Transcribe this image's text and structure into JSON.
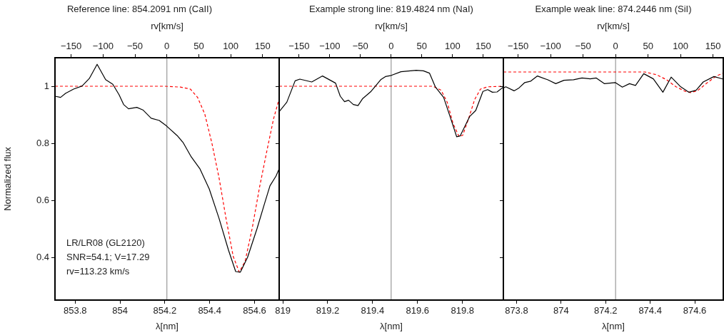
{
  "chart_data": [
    {
      "type": "line",
      "title": "Reference line: 854.2091 nm (CaII)",
      "xlabel": "λ[nm]",
      "x2label": "rv[km/s]",
      "ylabel": "Normalized flux",
      "xlim": [
        853.71,
        854.71
      ],
      "xticks": [
        853.8,
        854,
        854.2,
        854.4,
        854.6
      ],
      "x2lim": [
        -175.2,
        175.8
      ],
      "x2ticks": [
        {
          "value": -150,
          "label": "−150"
        },
        {
          "value": -100,
          "label": "−100"
        },
        {
          "value": -50,
          "label": "−50"
        },
        0,
        50,
        100,
        150
      ],
      "ylim": [
        0.25,
        1.1
      ],
      "yticks": [
        0.4,
        0.6,
        0.8,
        1
      ],
      "grid": false,
      "legend": false,
      "marker": "none",
      "ref_lines": [
        {
          "axis": "x",
          "value": 854.2091,
          "color": "#999999"
        }
      ],
      "annotations": [
        "LR/LR08 (GL2120)",
        "SNR=54.1; V=17.29",
        "rv=113.23 km/s"
      ],
      "series": [
        {
          "color": "#000000",
          "line_style": "solid",
          "x": [
            853.71,
            853.735,
            853.757,
            853.793,
            853.831,
            853.863,
            853.898,
            853.936,
            853.968,
            853.996,
            854.016,
            854.038,
            854.075,
            854.102,
            854.139,
            854.175,
            854.207,
            854.255,
            854.282,
            854.318,
            854.356,
            854.398,
            854.442,
            854.484,
            854.516,
            854.537,
            854.569,
            854.611,
            854.643,
            854.669,
            854.696,
            854.709
          ],
          "values": [
            0.965,
            0.961,
            0.975,
            0.99,
            1.001,
            1.027,
            1.077,
            1.023,
            1.007,
            0.97,
            0.936,
            0.921,
            0.926,
            0.917,
            0.888,
            0.88,
            0.861,
            0.827,
            0.802,
            0.752,
            0.711,
            0.64,
            0.536,
            0.425,
            0.35,
            0.348,
            0.4,
            0.5,
            0.584,
            0.651,
            0.685,
            0.709
          ]
        },
        {
          "color": "#ff0000",
          "line_style": "dashed",
          "x": [
            853.71,
            854.2,
            854.27,
            854.314,
            854.346,
            854.378,
            854.41,
            854.442,
            854.473,
            854.505,
            854.532,
            854.558,
            854.59,
            854.622,
            854.654,
            854.685,
            854.709
          ],
          "values": [
            1,
            1,
            0.997,
            0.99,
            0.961,
            0.903,
            0.8,
            0.678,
            0.536,
            0.403,
            0.348,
            0.386,
            0.503,
            0.644,
            0.769,
            0.886,
            0.953
          ]
        }
      ]
    },
    {
      "type": "line",
      "title": "Example strong line: 819.4824 nm (NaI)",
      "xlabel": "λ[nm]",
      "x2label": "rv[km/s]",
      "tick_labels": "x",
      "xlim": [
        818.984,
        819.982
      ],
      "xticks": [
        819,
        819.2,
        819.4,
        819.6,
        819.8
      ],
      "x2lim": [
        -182.3,
        182.8
      ],
      "x2ticks": [
        {
          "value": -150,
          "label": "−150"
        },
        {
          "value": -100,
          "label": "−100"
        },
        {
          "value": -50,
          "label": "−50"
        },
        0,
        50,
        100,
        150
      ],
      "ylim": [
        0.25,
        1.1
      ],
      "yticks": [
        0.4,
        0.6,
        0.8,
        1
      ],
      "grid": false,
      "legend": false,
      "marker": "none",
      "ref_lines": [
        {
          "axis": "x",
          "value": 819.4824,
          "color": "#999999"
        }
      ],
      "series": [
        {
          "color": "#000000",
          "line_style": "solid",
          "x": [
            818.984,
            819.018,
            819.055,
            819.076,
            819.129,
            819.177,
            819.235,
            819.256,
            819.275,
            819.293,
            819.314,
            819.335,
            819.356,
            819.393,
            819.415,
            819.436,
            819.457,
            819.483,
            819.526,
            819.594,
            819.626,
            819.653,
            819.679,
            819.716,
            819.748,
            819.774,
            819.79,
            819.832,
            819.859,
            819.891,
            819.912,
            819.933,
            819.954,
            819.98
          ],
          "values": [
            0.911,
            0.944,
            1.019,
            1.025,
            1.015,
            1.036,
            1.011,
            0.965,
            0.946,
            0.951,
            0.936,
            0.932,
            0.957,
            0.982,
            1.003,
            1.023,
            1.034,
            1.038,
            1.051,
            1.056,
            1.054,
            1.046,
            0.998,
            0.961,
            0.886,
            0.823,
            0.826,
            0.894,
            0.915,
            0.982,
            0.988,
            0.979,
            0.98,
            0.996
          ]
        },
        {
          "color": "#ff0000",
          "line_style": "dashed",
          "x": [
            818.984,
            819.668,
            819.705,
            819.732,
            819.758,
            819.785,
            819.801,
            819.827,
            819.854,
            819.88,
            819.912,
            819.98
          ],
          "values": [
            1,
            1,
            0.986,
            0.944,
            0.869,
            0.823,
            0.828,
            0.886,
            0.953,
            0.99,
            0.998,
            1
          ]
        }
      ]
    },
    {
      "type": "line",
      "title": "Example weak line: 874.2446 nm (SiI)",
      "xlabel": "λ[nm]",
      "x2label": "rv[km/s]",
      "tick_labels": "x",
      "xlim": [
        873.741,
        874.728
      ],
      "xticks": [
        873.8,
        874,
        874.2,
        874.4,
        874.6
      ],
      "x2lim": [
        -172.7,
        165.8
      ],
      "x2ticks": [
        {
          "value": -150,
          "label": "−150"
        },
        {
          "value": -100,
          "label": "−100"
        },
        {
          "value": -50,
          "label": "−50"
        },
        0,
        50,
        100,
        150
      ],
      "ylim": [
        0.25,
        1.1
      ],
      "yticks": [
        0.4,
        0.6,
        0.8,
        1
      ],
      "grid": false,
      "legend": false,
      "marker": "none",
      "ref_lines": [
        {
          "axis": "x",
          "value": 874.2446,
          "color": "#999999"
        }
      ],
      "series": [
        {
          "color": "#000000",
          "line_style": "solid",
          "x": [
            873.741,
            873.752,
            873.789,
            873.811,
            873.837,
            873.864,
            873.894,
            873.939,
            873.976,
            874.013,
            874.056,
            874.094,
            874.131,
            874.158,
            874.195,
            874.243,
            874.275,
            874.307,
            874.334,
            874.371,
            874.414,
            874.457,
            874.494,
            874.537,
            874.574,
            874.606,
            874.638,
            874.686,
            874.728
          ],
          "values": [
            0.994,
            0.998,
            0.984,
            0.994,
            1.013,
            1.018,
            1.036,
            1.023,
            1.009,
            1.021,
            1.023,
            1.029,
            1.026,
            1.029,
            1.009,
            1.013,
            0.997,
            1.009,
            1.003,
            1.044,
            1.026,
            0.979,
            1.032,
            0.998,
            0.979,
            0.986,
            1.015,
            1.034,
            1.025
          ]
        },
        {
          "color": "#ff0000",
          "line_style": "dashed",
          "x": [
            873.741,
            874.377,
            874.43,
            874.473,
            874.516,
            874.558,
            874.58,
            874.612,
            874.654,
            874.697,
            874.728
          ],
          "values": [
            1.05,
            1.05,
            1.04,
            1.023,
            0.998,
            0.982,
            0.978,
            0.984,
            1.011,
            1.036,
            1.046
          ]
        }
      ]
    }
  ]
}
